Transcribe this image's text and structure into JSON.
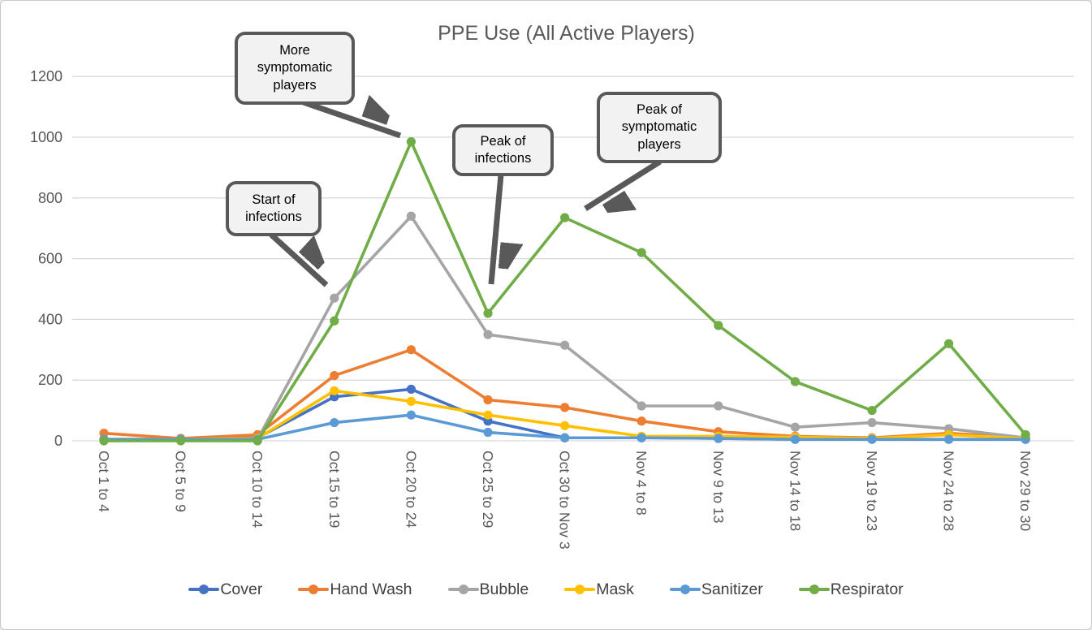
{
  "chart_data": {
    "type": "line",
    "title": "PPE Use (All Active Players)",
    "categories": [
      "Oct 1 to 4",
      "Oct 5 to 9",
      "Oct 10 to 14",
      "Oct 15 to 19",
      "Oct 20 to 24",
      "Oct 25 to 29",
      "Oct 30 to Nov 3",
      "Nov 4 to 8",
      "Nov 9 to 13",
      "Nov 14 to 18",
      "Nov 19 to 23",
      "Nov 24 to 28",
      "Nov 29 to 30"
    ],
    "series": [
      {
        "name": "Cover",
        "color": "#4472C4",
        "values": [
          5,
          5,
          10,
          145,
          170,
          65,
          10,
          10,
          8,
          5,
          5,
          5,
          5
        ]
      },
      {
        "name": "Hand Wash",
        "color": "#ED7D31",
        "values": [
          25,
          8,
          20,
          215,
          300,
          135,
          110,
          65,
          30,
          15,
          10,
          25,
          10
        ]
      },
      {
        "name": "Bubble",
        "color": "#A5A5A5",
        "values": [
          5,
          5,
          5,
          470,
          740,
          350,
          315,
          115,
          115,
          45,
          60,
          40,
          10
        ]
      },
      {
        "name": "Mask",
        "color": "#FFC000",
        "values": [
          5,
          5,
          8,
          165,
          130,
          85,
          50,
          15,
          15,
          12,
          8,
          20,
          8
        ]
      },
      {
        "name": "Sanitizer",
        "color": "#5B9BD5",
        "values": [
          5,
          5,
          5,
          60,
          85,
          28,
          10,
          10,
          8,
          5,
          5,
          5,
          5
        ]
      },
      {
        "name": "Respirator",
        "color": "#70AD47",
        "values": [
          0,
          0,
          0,
          395,
          985,
          420,
          735,
          620,
          380,
          195,
          100,
          320,
          20
        ]
      }
    ],
    "ylim": [
      0,
      1200
    ],
    "yticks": [
      0,
      200,
      400,
      600,
      800,
      1000,
      1200
    ],
    "xlabel": "",
    "ylabel": "",
    "grid": true,
    "legend_position": "bottom",
    "marker": "circle",
    "annotations": [
      {
        "text": "More symptomatic players",
        "lines": [
          "More",
          "symptomatic",
          "players"
        ],
        "points_to": "Respirator peak at Oct 20 to 24 (985)"
      },
      {
        "text": "Start of infections",
        "lines": [
          "Start of",
          "infections"
        ],
        "points_to": "Bubble rise at Oct 15 to 19 (470)"
      },
      {
        "text": "Peak of infections",
        "lines": [
          "Peak of",
          "infections"
        ],
        "points_to": "Respirator dip at Oct 25 to 29 (420)"
      },
      {
        "text": "Peak of symptomatic players",
        "lines": [
          "Peak of",
          "symptomatic",
          "players"
        ],
        "points_to": "Respirator peak at Oct 30 to Nov 3 (735)"
      }
    ],
    "colors": {
      "gridline": "#d9d9d9",
      "axis_text": "#595959",
      "annotation_border": "#595959",
      "annotation_fill": "#f2f2f2",
      "arrow": "#595959"
    }
  }
}
